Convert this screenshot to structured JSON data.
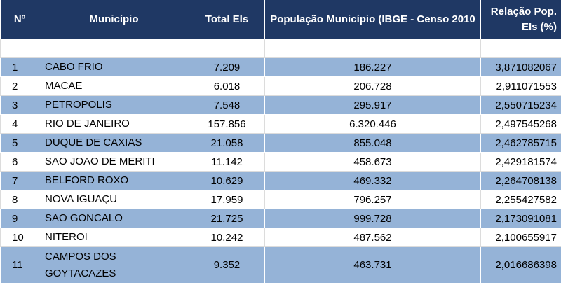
{
  "table": {
    "headers": {
      "no": "Nº",
      "municipio": "Município",
      "total": "Total EIs",
      "populacao": "População Município (IBGE - Censo 2010",
      "relacao": "Relação Pop. EIs (%)"
    },
    "rows": [
      {
        "no": "1",
        "municipio": "CABO FRIO",
        "total": "7.209",
        "populacao": "186.227",
        "relacao": "3,871082067"
      },
      {
        "no": "2",
        "municipio": "MACAE",
        "total": "6.018",
        "populacao": "206.728",
        "relacao": "2,911071553"
      },
      {
        "no": "3",
        "municipio": "PETROPOLIS",
        "total": "7.548",
        "populacao": "295.917",
        "relacao": "2,550715234"
      },
      {
        "no": "4",
        "municipio": "RIO DE JANEIRO",
        "total": "157.856",
        "populacao": "6.320.446",
        "relacao": "2,497545268"
      },
      {
        "no": "5",
        "municipio": "DUQUE DE CAXIAS",
        "total": "21.058",
        "populacao": "855.048",
        "relacao": "2,462785715"
      },
      {
        "no": "6",
        "municipio": "SAO JOAO DE MERITI",
        "total": "11.142",
        "populacao": "458.673",
        "relacao": "2,429181574"
      },
      {
        "no": "7",
        "municipio": "BELFORD ROXO",
        "total": "10.629",
        "populacao": "469.332",
        "relacao": "2,264708138"
      },
      {
        "no": "8",
        "municipio": "NOVA IGUAÇU",
        "total": "17.959",
        "populacao": "796.257",
        "relacao": "2,255427582"
      },
      {
        "no": "9",
        "municipio": "SAO GONCALO",
        "total": "21.725",
        "populacao": "999.728",
        "relacao": "2,173091081"
      },
      {
        "no": "10",
        "municipio": "NITEROI",
        "total": "10.242",
        "populacao": "487.562",
        "relacao": "2,100655917"
      },
      {
        "no": "11",
        "municipio": "CAMPOS DOS GOYTACAZES",
        "total": "9.352",
        "populacao": "463.731",
        "relacao": "2,016686398"
      }
    ]
  },
  "colors": {
    "header_bg": "#1f3864",
    "header_text": "#ffffff",
    "row_band": "#95b3d7",
    "row_plain": "#ffffff"
  }
}
